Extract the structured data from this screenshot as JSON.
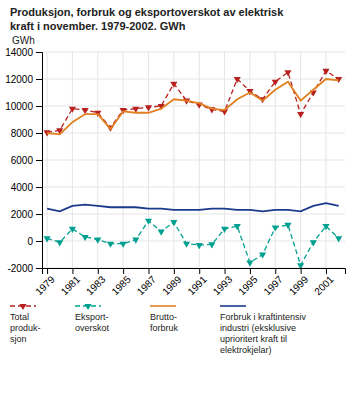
{
  "chart_data": {
    "type": "line",
    "title": "Produksjon, forbruk og eksportoverskot av elektrisk\nkraft i november. 1979-2002. GWh",
    "ylabel": "GWh",
    "x": [
      1979,
      1980,
      1981,
      1982,
      1983,
      1984,
      1985,
      1986,
      1987,
      1988,
      1989,
      1990,
      1991,
      1992,
      1993,
      1994,
      1995,
      1996,
      1997,
      1998,
      1999,
      2000,
      2001,
      2002
    ],
    "series": [
      {
        "name": "Total\nproduk-\nsjon",
        "color": "#b82020",
        "line_style": "dashed",
        "marker": "triangle-down",
        "values": [
          8050,
          8200,
          9800,
          9700,
          9500,
          8400,
          9700,
          9800,
          9900,
          10000,
          11650,
          10400,
          10100,
          9750,
          9600,
          12000,
          11100,
          10500,
          11800,
          12500,
          9400,
          11000,
          12600,
          12000
        ]
      },
      {
        "name": "Eksport-\noverskot",
        "color": "#00a090",
        "line_style": "dashed",
        "marker": "triangle-down",
        "values": [
          200,
          -100,
          900,
          300,
          100,
          -200,
          -200,
          100,
          1500,
          700,
          1400,
          -200,
          -300,
          -250,
          900,
          1100,
          -1600,
          -1000,
          1000,
          1200,
          -1800,
          -100,
          1100,
          200
        ]
      },
      {
        "name": "Brutto-\nforbruk",
        "color": "#e08020",
        "line_style": "solid",
        "marker": "none",
        "values": [
          8000,
          7900,
          8800,
          9400,
          9400,
          8300,
          9600,
          9500,
          9500,
          9800,
          10500,
          10400,
          10200,
          9800,
          9700,
          10500,
          11000,
          10400,
          11200,
          11800,
          10400,
          11200,
          12000,
          11900
        ]
      },
      {
        "name": "Forbruk i kraftintensiv\nindustri (eksklusive\nuprioritert kraft til\nelektrokjelar)",
        "color": "#1a3a8c",
        "line_style": "solid",
        "marker": "none",
        "values": [
          2400,
          2200,
          2600,
          2700,
          2600,
          2500,
          2500,
          2500,
          2400,
          2400,
          2300,
          2300,
          2300,
          2400,
          2400,
          2300,
          2300,
          2200,
          2300,
          2300,
          2200,
          2600,
          2800,
          2600
        ]
      }
    ],
    "xlim": [
      1978.6,
      2002.5
    ],
    "xticks": [
      1979,
      1981,
      1983,
      1985,
      1987,
      1989,
      1991,
      1993,
      1995,
      1997,
      1999,
      2001
    ],
    "ylim": [
      -2000,
      14000
    ],
    "yticks": [
      -2000,
      0,
      2000,
      4000,
      6000,
      8000,
      10000,
      12000,
      14000
    ],
    "grid": true,
    "legend": "bottom"
  }
}
